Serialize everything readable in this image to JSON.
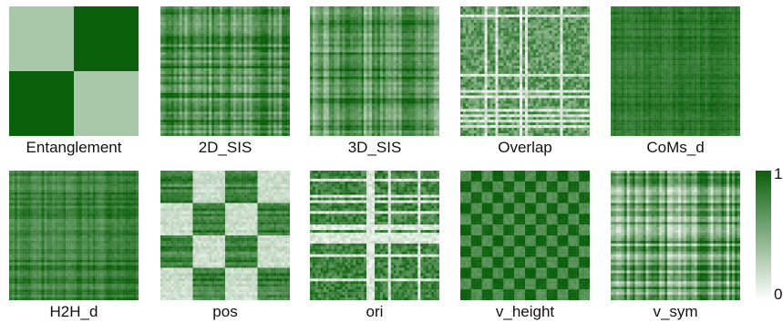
{
  "colors": {
    "low": "#ffffff",
    "high": "#0a5f0a",
    "text": "#111111"
  },
  "chart_data": {
    "type": "heatmap",
    "colormap": "white-to-green",
    "value_range": [
      0,
      1
    ],
    "colorbar": {
      "max_label": "1",
      "min_label": "0"
    },
    "panels": [
      {
        "label": "Entanglement",
        "pattern": "two-block",
        "base": 0.35,
        "contrast": 1.0,
        "seed": 11
      },
      {
        "label": "2D_SIS",
        "pattern": "noisy-rows",
        "base": 0.75,
        "contrast": 0.55,
        "seed": 23
      },
      {
        "label": "3D_SIS",
        "pattern": "noisy-rows",
        "base": 0.72,
        "contrast": 0.6,
        "seed": 37
      },
      {
        "label": "Overlap",
        "pattern": "sparse-rows",
        "base": 0.65,
        "contrast": 0.85,
        "seed": 41
      },
      {
        "label": "CoMs_d",
        "pattern": "dense",
        "base": 0.88,
        "contrast": 0.25,
        "seed": 53
      },
      {
        "label": "H2H_d",
        "pattern": "dense",
        "base": 0.82,
        "contrast": 0.4,
        "seed": 67
      },
      {
        "label": "pos",
        "pattern": "quad-block",
        "base": 0.55,
        "contrast": 0.8,
        "seed": 71
      },
      {
        "label": "ori",
        "pattern": "sparse-rows",
        "base": 0.8,
        "contrast": 0.7,
        "seed": 83
      },
      {
        "label": "v_height",
        "pattern": "checker",
        "base": 0.85,
        "contrast": 0.3,
        "seed": 97
      },
      {
        "label": "v_sym",
        "pattern": "noisy-rows",
        "base": 0.6,
        "contrast": 0.75,
        "seed": 101
      }
    ]
  }
}
